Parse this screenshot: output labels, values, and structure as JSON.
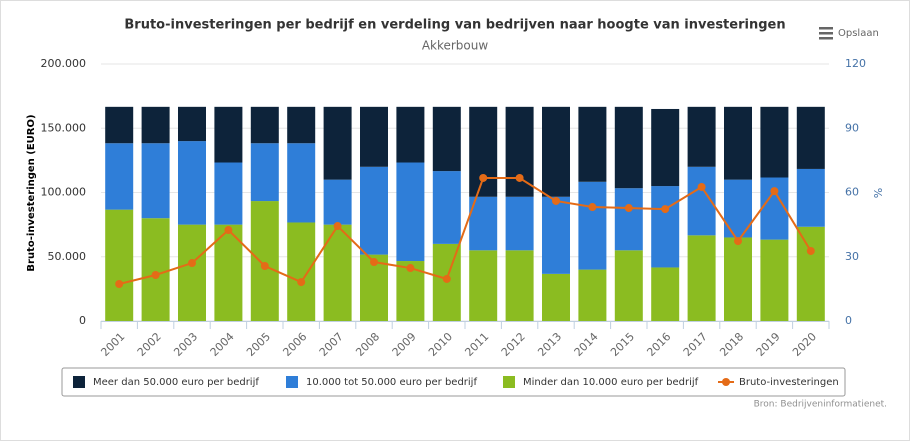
{
  "chart_data": {
    "type": "stacked-bar-line",
    "title": "Bruto-investeringen per bedrijf en verdeling van bedrijven naar hoogte van investeringen",
    "subtitle": "Akkerbouw",
    "y_label": "Bruto-investeringen (EURO)",
    "y2_label": "%",
    "menu_label": "Opslaan",
    "credits": "Bron: Bedrijveninformatienet.",
    "categories": [
      "2001",
      "2002",
      "2003",
      "2004",
      "2005",
      "2006",
      "2007",
      "2008",
      "2009",
      "2010",
      "2011",
      "2012",
      "2013",
      "2014",
      "2015",
      "2016",
      "2017",
      "2018",
      "2019",
      "2020"
    ],
    "ylim": [
      0,
      200000
    ],
    "yticks": [
      {
        "value": 0,
        "label": "0"
      },
      {
        "value": 50000,
        "label": "50.000"
      },
      {
        "value": 100000,
        "label": "100.000"
      },
      {
        "value": 150000,
        "label": "150.000"
      },
      {
        "value": 200000,
        "label": "200.000"
      }
    ],
    "y2lim": [
      0,
      120
    ],
    "y2ticks": [
      0,
      30,
      60,
      90,
      120
    ],
    "series": [
      {
        "name": "Meer dan 50.000 euro per bedrijf",
        "color": "#0d233a",
        "kind": "bar",
        "axis": "y2",
        "values": [
          17,
          17,
          16,
          26,
          17,
          17,
          34,
          28,
          26,
          30,
          42,
          42,
          42,
          35,
          38,
          36,
          28,
          34,
          33,
          29
        ]
      },
      {
        "name": "10.000 tot 50.000 euro per bedrijf",
        "color": "#2f7ed8",
        "kind": "bar",
        "axis": "y2",
        "values": [
          31,
          35,
          39,
          29,
          27,
          37,
          21,
          41,
          46,
          34,
          25,
          25,
          36,
          41,
          29,
          38,
          32,
          27,
          29,
          27
        ]
      },
      {
        "name": "Minder dan 10.000 euro per bedrijf",
        "color": "#8bbc21",
        "kind": "bar",
        "axis": "y2",
        "values": [
          52,
          48,
          45,
          45,
          56,
          46,
          45,
          31,
          28,
          36,
          33,
          33,
          22,
          24,
          33,
          25,
          40,
          39,
          38,
          44
        ]
      },
      {
        "name": "Bruto-investeringen",
        "color": "#e46b17",
        "kind": "line",
        "axis": "y",
        "values": [
          28800,
          35800,
          45100,
          70800,
          42800,
          30300,
          73900,
          45900,
          41200,
          32700,
          111300,
          111300,
          93400,
          88700,
          87900,
          87100,
          104300,
          62200,
          101100,
          54500
        ]
      }
    ]
  }
}
